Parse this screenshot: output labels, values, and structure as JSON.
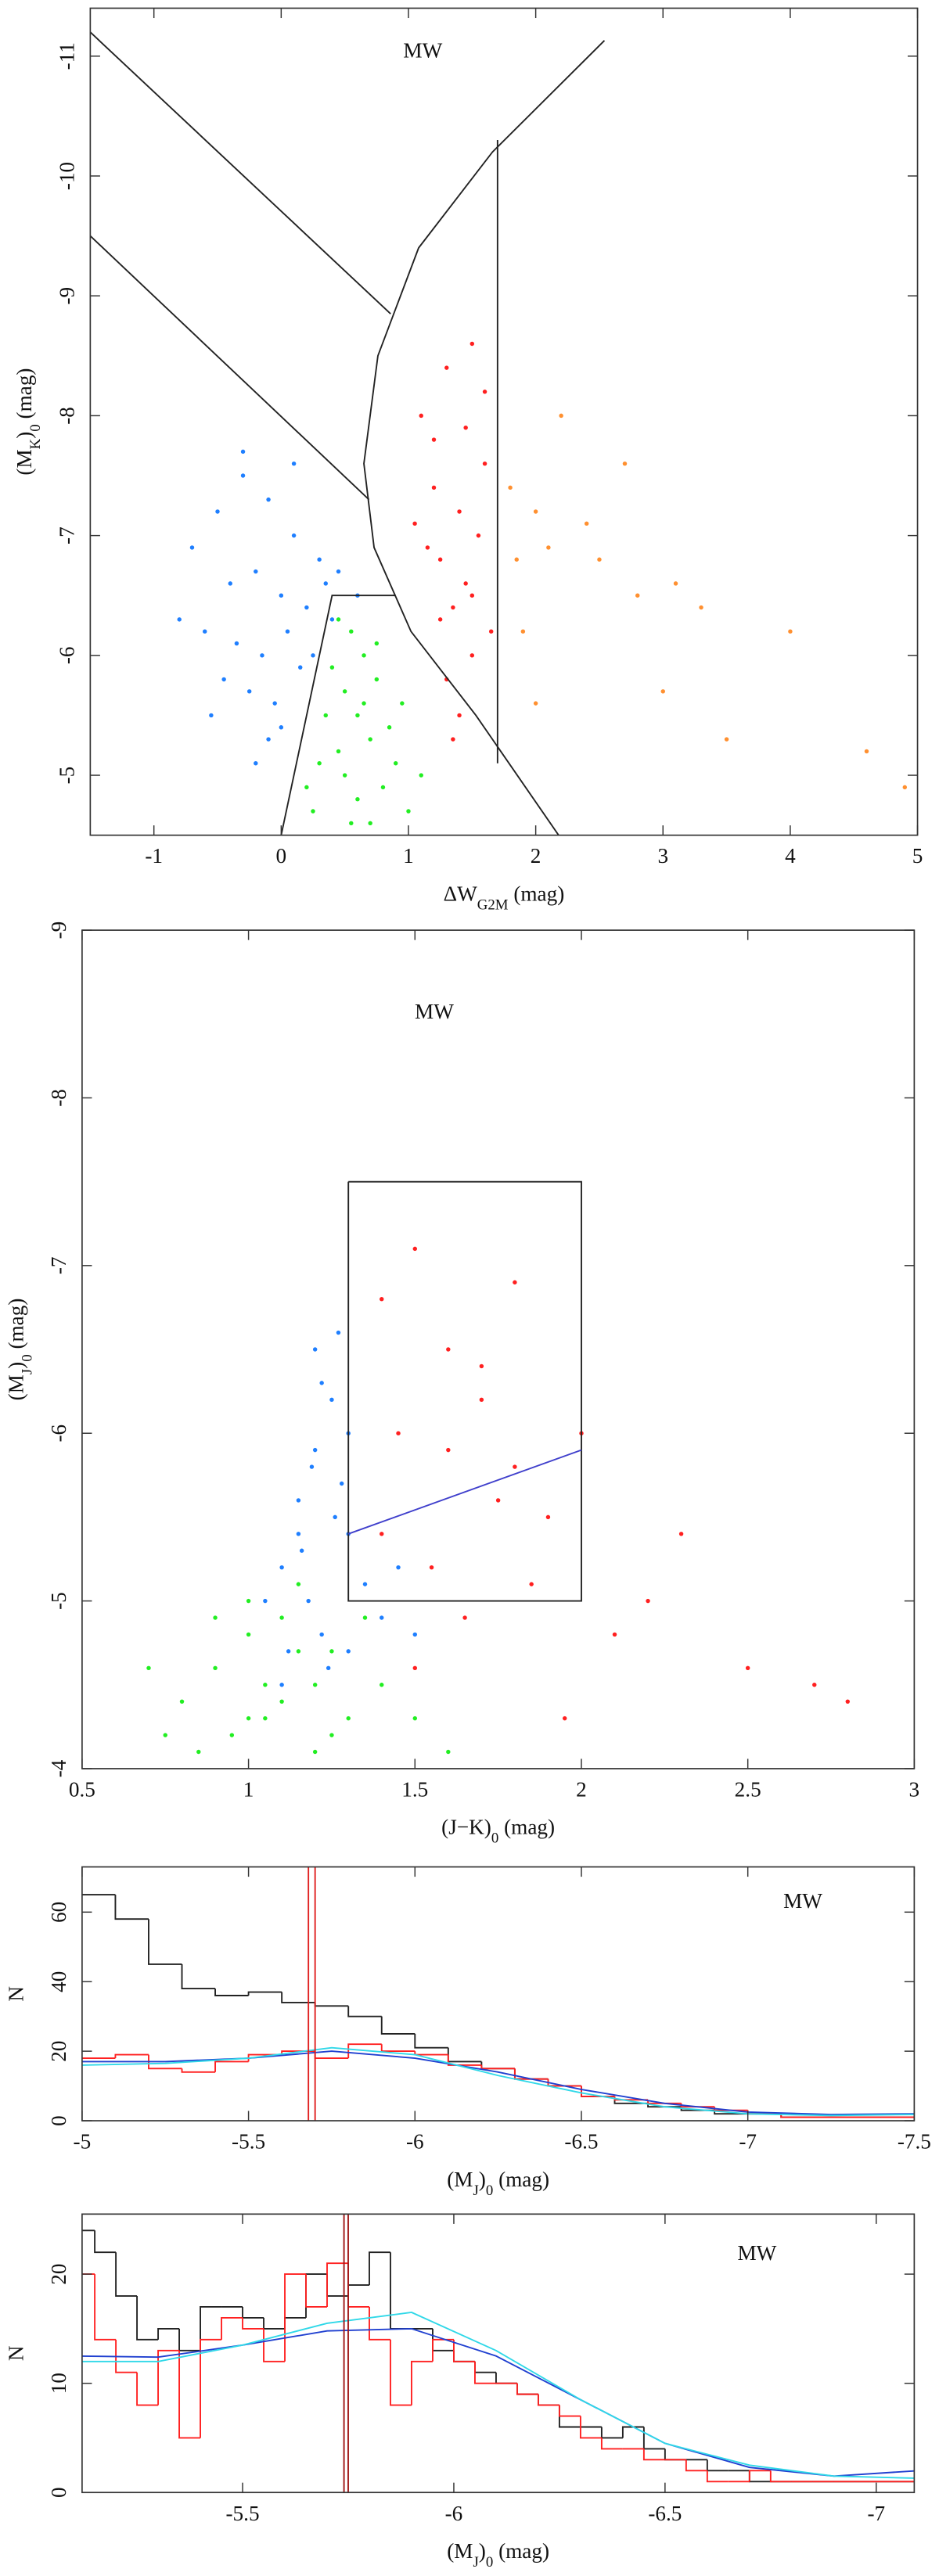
{
  "chart_data": [
    {
      "type": "scatter",
      "annotation": "MW",
      "xlabel": [
        {
          "t": "ΔW"
        },
        {
          "t": "G2M",
          "sub": true
        },
        {
          "t": " (mag)"
        }
      ],
      "ylabel": [
        {
          "t": "(M"
        },
        {
          "t": "K",
          "sub": true
        },
        {
          "t": ")"
        },
        {
          "t": "0",
          "sub": true
        },
        {
          "t": " (mag)"
        }
      ],
      "xlim": [
        -1.5,
        5
      ],
      "xticks": [
        -1,
        0,
        1,
        2,
        3,
        4,
        5
      ],
      "ylim": [
        -4.5,
        -11.4
      ],
      "yticks": [
        -5,
        -6,
        -7,
        -8,
        -9,
        -10,
        -11
      ],
      "series": [
        {
          "color": "#1f7fff",
          "x": [
            -0.5,
            -0.3,
            -0.1,
            0.1,
            0.3,
            -0.4,
            -0.2,
            0,
            0.2,
            0.4,
            -0.6,
            -0.35,
            -0.15,
            0.05,
            0.25,
            -0.45,
            -0.25,
            -0.05,
            0.15,
            0.35,
            -0.7,
            -0.55,
            -0.1,
            0.45,
            0.6,
            -0.8,
            -0.3,
            0.1,
            -0.2,
            0.0
          ],
          "values": [
            -7.2,
            -7.5,
            -7.3,
            -7.0,
            -6.8,
            -6.6,
            -6.7,
            -6.5,
            -6.4,
            -6.3,
            -6.2,
            -6.1,
            -6.0,
            -6.2,
            -6.0,
            -5.8,
            -5.7,
            -5.6,
            -5.9,
            -6.6,
            -6.9,
            -5.5,
            -5.3,
            -6.7,
            -6.5,
            -6.3,
            -7.7,
            -7.6,
            -5.1,
            -5.4
          ]
        },
        {
          "color": "#22ee22",
          "x": [
            0.45,
            0.55,
            0.65,
            0.75,
            0.5,
            0.6,
            0.7,
            0.85,
            0.4,
            0.35,
            0.3,
            0.5,
            0.6,
            0.8,
            0.9,
            1.0,
            0.55,
            0.7,
            0.45,
            0.65,
            1.1,
            0.25,
            0.2,
            0.75,
            0.95
          ],
          "values": [
            -6.3,
            -6.2,
            -6.0,
            -5.8,
            -5.7,
            -5.5,
            -5.3,
            -5.4,
            -5.9,
            -5.5,
            -5.1,
            -5.0,
            -4.8,
            -4.9,
            -5.1,
            -4.7,
            -4.6,
            -4.6,
            -5.2,
            -5.6,
            -5.0,
            -4.7,
            -4.9,
            -6.1,
            -5.6
          ]
        },
        {
          "color": "#ff2020",
          "x": [
            1.1,
            1.3,
            1.5,
            1.6,
            1.2,
            1.4,
            1.55,
            1.25,
            1.45,
            1.35,
            1.15,
            1.65,
            1.5,
            1.3,
            1.4,
            1.2,
            1.6,
            1.45,
            1.05,
            1.35,
            1.5,
            1.25
          ],
          "values": [
            -8.0,
            -8.4,
            -8.6,
            -7.6,
            -7.4,
            -7.2,
            -7.0,
            -6.8,
            -6.6,
            -6.4,
            -6.9,
            -6.2,
            -6.0,
            -5.8,
            -5.5,
            -7.8,
            -8.2,
            -7.9,
            -7.1,
            -5.3,
            -6.5,
            -6.3
          ]
        },
        {
          "color": "#ff9030",
          "x": [
            1.8,
            2.0,
            2.2,
            2.5,
            2.8,
            3.1,
            3.5,
            2.1,
            2.4,
            1.9,
            3.0,
            4.0,
            4.6,
            4.9,
            2.7,
            3.3,
            2.0,
            1.85
          ],
          "values": [
            -7.4,
            -7.2,
            -8.0,
            -6.8,
            -6.5,
            -6.6,
            -5.3,
            -6.9,
            -7.1,
            -6.2,
            -5.7,
            -6.2,
            -5.2,
            -4.9,
            -7.6,
            -6.4,
            -5.6,
            -6.8
          ]
        }
      ],
      "lines": [
        {
          "color": "#222",
          "x": [
            -1.5,
            0.86
          ],
          "y": [
            -11.2,
            -8.85
          ]
        },
        {
          "color": "#222",
          "x": [
            -1.5,
            0.69
          ],
          "y": [
            -9.5,
            -7.3
          ]
        },
        {
          "color": "#222",
          "x": [
            2.54,
            1.66,
            1.08,
            0.76,
            0.65,
            0.73,
            1.02,
            1.53,
            2.18
          ],
          "y": [
            -11.13,
            -10.2,
            -9.4,
            -8.5,
            -7.6,
            -6.9,
            -6.2,
            -5.5,
            -4.5
          ]
        },
        {
          "color": "#222",
          "x": [
            1.7,
            1.7
          ],
          "y": [
            -10.3,
            -5.1
          ]
        },
        {
          "color": "#222",
          "x": [
            0,
            0.4,
            0.9
          ],
          "y": [
            -4.5,
            -6.5,
            -6.5
          ]
        }
      ]
    },
    {
      "type": "scatter",
      "annotation": "MW",
      "xlabel": [
        {
          "t": "(J−K)"
        },
        {
          "t": "0",
          "sub": true
        },
        {
          "t": " (mag)"
        }
      ],
      "ylabel": [
        {
          "t": "(M"
        },
        {
          "t": "J",
          "sub": true
        },
        {
          "t": ")"
        },
        {
          "t": "0",
          "sub": true
        },
        {
          "t": " (mag)"
        }
      ],
      "xlim": [
        0.5,
        3
      ],
      "xticks": [
        0.5,
        1,
        1.5,
        2,
        2.5,
        3
      ],
      "ylim": [
        -4,
        -9
      ],
      "yticks": [
        -4,
        -5,
        -6,
        -7,
        -8,
        -9
      ],
      "series": [
        {
          "color": "#1f7fff",
          "x": [
            1.1,
            1.15,
            1.2,
            1.25,
            1.3,
            1.18,
            1.22,
            1.28,
            1.12,
            1.35,
            1.2,
            1.24,
            1.16,
            1.3,
            1.4,
            1.26,
            1.19,
            1.1,
            1.45,
            1.22,
            1.05,
            1.3,
            1.15,
            1.5,
            1.27
          ],
          "values": [
            -5.2,
            -5.6,
            -5.9,
            -6.2,
            -5.4,
            -5.0,
            -4.8,
            -5.7,
            -4.7,
            -5.1,
            -6.5,
            -4.6,
            -5.3,
            -6.0,
            -4.9,
            -5.5,
            -5.8,
            -4.5,
            -5.2,
            -6.3,
            -5.0,
            -4.7,
            -5.4,
            -4.8,
            -6.6
          ]
        },
        {
          "color": "#22ee22",
          "x": [
            0.8,
            0.9,
            1.0,
            1.05,
            1.1,
            1.15,
            1.2,
            0.95,
            1.25,
            1.3,
            0.85,
            1.0,
            1.1,
            1.2,
            1.4,
            0.7,
            0.75,
            1.35,
            1.5,
            1.6,
            0.9,
            1.05,
            1.15,
            1.25,
            1.0
          ],
          "values": [
            -4.4,
            -4.6,
            -4.8,
            -4.3,
            -4.9,
            -5.1,
            -4.5,
            -4.2,
            -4.7,
            -4.3,
            -4.1,
            -5.0,
            -4.4,
            -4.1,
            -4.5,
            -4.6,
            -4.2,
            -4.9,
            -4.3,
            -4.1,
            -4.9,
            -4.5,
            -4.7,
            -4.2,
            -4.3
          ]
        },
        {
          "color": "#ff2020",
          "x": [
            1.4,
            1.5,
            1.6,
            1.7,
            1.8,
            1.9,
            2.0,
            1.55,
            1.65,
            1.75,
            1.45,
            1.85,
            2.1,
            2.3,
            2.5,
            2.7,
            2.8,
            1.6,
            1.7,
            1.5,
            1.95,
            2.2,
            1.4,
            1.8
          ],
          "values": [
            -6.8,
            -7.1,
            -6.5,
            -6.2,
            -5.8,
            -5.5,
            -6.0,
            -5.2,
            -4.9,
            -5.6,
            -6.0,
            -5.1,
            -4.8,
            -5.4,
            -4.6,
            -4.5,
            -4.4,
            -5.9,
            -6.4,
            -4.6,
            -4.3,
            -5.0,
            -5.4,
            -6.9
          ]
        }
      ],
      "lines": [
        {
          "color": "#222",
          "x": [
            1.3,
            2,
            2,
            1.3,
            1.3
          ],
          "y": [
            -7.5,
            -7.5,
            -5,
            -5,
            -7.5
          ]
        },
        {
          "color": "#4040cc",
          "x": [
            1.3,
            2.0
          ],
          "y": [
            -5.4,
            -5.9
          ]
        }
      ]
    },
    {
      "type": "histogram",
      "annotation": "MW",
      "xlabel": [
        {
          "t": "(M"
        },
        {
          "t": "J",
          "sub": true
        },
        {
          "t": ")"
        },
        {
          "t": "0",
          "sub": true
        },
        {
          "t": " (mag)"
        }
      ],
      "ylabel": [
        {
          "t": "N"
        }
      ],
      "xlim": [
        -5,
        -7.5
      ],
      "xticks": [
        -5,
        -5.5,
        -6,
        -6.5,
        -7,
        -7.5
      ],
      "ylim": [
        0,
        73
      ],
      "yticks": [
        0,
        20,
        40,
        60
      ],
      "bins": [
        -5,
        -5.1,
        -5.2,
        -5.3,
        -5.4,
        -5.5,
        -5.6,
        -5.7,
        -5.8,
        -5.9,
        -6,
        -6.1,
        -6.2,
        -6.3,
        -6.4,
        -6.5,
        -6.6,
        -6.7,
        -6.8,
        -6.9,
        -7,
        -7.1,
        -7.2,
        -7.3,
        -7.4,
        -7.5
      ],
      "series": [
        {
          "color": "#222",
          "values": [
            65,
            58,
            45,
            38,
            36,
            37,
            34,
            33,
            30,
            25,
            21,
            17,
            15,
            12,
            10,
            7,
            5,
            4,
            3,
            2,
            2,
            1,
            1,
            1,
            1
          ]
        },
        {
          "color": "#ff2020",
          "values": [
            18,
            19,
            15,
            14,
            17,
            19,
            20,
            18,
            22,
            20,
            19,
            16,
            15,
            12,
            10,
            7,
            6,
            5,
            4,
            3,
            2,
            1,
            1,
            1,
            1
          ]
        }
      ],
      "lines": [
        {
          "color": "#2040d0",
          "x": [
            -5,
            -5.25,
            -5.5,
            -5.75,
            -6,
            -6.25,
            -6.5,
            -6.75,
            -7,
            -7.25,
            -7.5
          ],
          "y": [
            17,
            17,
            18,
            20,
            18,
            14,
            9,
            5,
            2.5,
            1.8,
            2
          ]
        },
        {
          "color": "#30d8e8",
          "x": [
            -5,
            -5.25,
            -5.5,
            -5.75,
            -6,
            -6.25,
            -6.5,
            -6.75,
            -7,
            -7.25,
            -7.5
          ],
          "y": [
            16,
            16.5,
            18,
            21,
            19,
            13,
            8,
            4,
            2,
            1.5,
            1.8
          ]
        }
      ],
      "vlines": {
        "color": "#e02020",
        "values": [
          -5.68,
          -5.7
        ]
      }
    },
    {
      "type": "histogram",
      "annotation": "MW",
      "xlabel": [
        {
          "t": "(M"
        },
        {
          "t": "J",
          "sub": true
        },
        {
          "t": ")"
        },
        {
          "t": "0",
          "sub": true
        },
        {
          "t": " (mag)"
        }
      ],
      "ylabel": [
        {
          "t": "N"
        }
      ],
      "xlim": [
        -5.12,
        -7.09
      ],
      "xticks": [
        -5.5,
        -6,
        -6.5,
        -7
      ],
      "ylim": [
        0,
        25.5
      ],
      "yticks": [
        0,
        10,
        20
      ],
      "bins": [
        -5.1,
        -5.15,
        -5.2,
        -5.25,
        -5.3,
        -5.35,
        -5.4,
        -5.45,
        -5.5,
        -5.55,
        -5.6,
        -5.65,
        -5.7,
        -5.75,
        -5.8,
        -5.85,
        -5.9,
        -5.95,
        -6,
        -6.05,
        -6.1,
        -6.15,
        -6.2,
        -6.25,
        -6.3,
        -6.35,
        -6.4,
        -6.45,
        -6.5,
        -6.55,
        -6.6,
        -6.65,
        -6.7,
        -6.75,
        -6.8,
        -6.85,
        -6.9,
        -6.95,
        -7,
        -7.05,
        -7.1
      ],
      "series": [
        {
          "color": "#222",
          "values": [
            24,
            22,
            18,
            14,
            15,
            13,
            17,
            17,
            16,
            15,
            16,
            20,
            18,
            19,
            22,
            15,
            15,
            13,
            12,
            11,
            10,
            9,
            8,
            6,
            6,
            5,
            6,
            4,
            3,
            3,
            2,
            2,
            1,
            1,
            1,
            1,
            1,
            1,
            1,
            1
          ]
        },
        {
          "color": "#ff2020",
          "values": [
            20,
            14,
            11,
            8,
            13,
            5,
            14,
            16,
            15,
            12,
            20,
            17,
            21,
            17,
            14,
            8,
            12,
            14,
            12,
            10,
            10,
            9,
            8,
            7,
            5,
            4,
            4,
            3,
            3,
            2,
            1,
            1,
            2,
            1,
            1,
            1,
            1,
            1,
            1,
            1
          ]
        }
      ],
      "lines": [
        {
          "color": "#2040d0",
          "x": [
            -5.1,
            -5.3,
            -5.5,
            -5.7,
            -5.9,
            -6.1,
            -6.3,
            -6.5,
            -6.7,
            -6.9,
            -7.1
          ],
          "y": [
            12.5,
            12.4,
            13.5,
            14.8,
            15,
            12.5,
            8.5,
            4.5,
            2.3,
            1.5,
            2.0
          ]
        },
        {
          "color": "#30d8e8",
          "x": [
            -5.1,
            -5.3,
            -5.5,
            -5.7,
            -5.9,
            -6.1,
            -6.3,
            -6.5,
            -6.7,
            -6.9,
            -7.1
          ],
          "y": [
            12,
            12,
            13.5,
            15.5,
            16.5,
            13,
            8.5,
            4.5,
            2.5,
            1.5,
            1.3
          ]
        }
      ],
      "vlines": {
        "color": "#a01818",
        "values": [
          -5.74,
          -5.75
        ]
      }
    }
  ]
}
